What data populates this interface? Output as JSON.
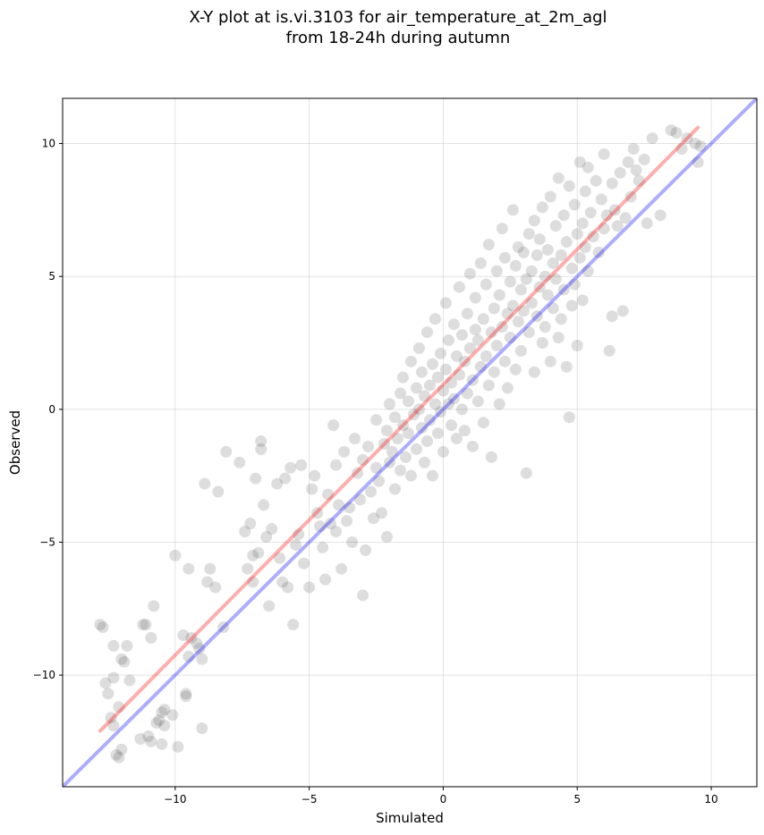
{
  "chart_data": {
    "type": "scatter",
    "title_lines": [
      "X-Y plot at is.vi.3103 for air_temperature_at_2m_agl",
      "from 18-24h during autumn"
    ],
    "xlabel": "Simulated",
    "ylabel": "Observed",
    "xlim": [
      -14.2,
      11.7
    ],
    "ylim": [
      -14.2,
      11.7
    ],
    "xticks": [
      -10,
      -5,
      0,
      5,
      10
    ],
    "yticks": [
      -10,
      -5,
      0,
      5,
      10
    ],
    "xtick_labels": [
      "−10",
      "−5",
      "0",
      "5",
      "10"
    ],
    "ytick_labels": [
      "−10",
      "−5",
      "0",
      "5",
      "10"
    ],
    "grid": true,
    "lines": [
      {
        "color": "#0000ff",
        "x": [
          -14.2,
          11.7
        ],
        "y": [
          -14.2,
          11.7
        ]
      },
      {
        "color": "#ff0000",
        "x": [
          -12.8,
          9.5
        ],
        "y": [
          -12.1,
          10.6
        ]
      }
    ],
    "point_color": "#555555",
    "points": [
      [
        -12.8,
        -8.1
      ],
      [
        -12.7,
        -8.2
      ],
      [
        -12.6,
        -10.3
      ],
      [
        -12.5,
        -10.7
      ],
      [
        -12.4,
        -11.6
      ],
      [
        -12.3,
        -10.1
      ],
      [
        -12.3,
        -11.9
      ],
      [
        -12.3,
        -8.9
      ],
      [
        -12.2,
        -13.0
      ],
      [
        -12.1,
        -11.2
      ],
      [
        -12.1,
        -13.1
      ],
      [
        -12.0,
        -12.8
      ],
      [
        -12.0,
        -9.4
      ],
      [
        -11.9,
        -9.5
      ],
      [
        -11.8,
        -8.9
      ],
      [
        -11.7,
        -10.2
      ],
      [
        -11.3,
        -12.4
      ],
      [
        -11.2,
        -8.1
      ],
      [
        -11.1,
        -8.1
      ],
      [
        -11.0,
        -12.3
      ],
      [
        -10.9,
        -12.5
      ],
      [
        -10.9,
        -8.6
      ],
      [
        -10.8,
        -7.4
      ],
      [
        -10.7,
        -11.8
      ],
      [
        -10.6,
        -11.7
      ],
      [
        -10.5,
        -11.4
      ],
      [
        -10.5,
        -12.6
      ],
      [
        -10.4,
        -11.3
      ],
      [
        -10.4,
        -11.9
      ],
      [
        -10.1,
        -11.5
      ],
      [
        -10.0,
        -5.5
      ],
      [
        -9.9,
        -12.7
      ],
      [
        -9.7,
        -8.5
      ],
      [
        -9.6,
        -10.7
      ],
      [
        -9.6,
        -10.8
      ],
      [
        -9.5,
        -9.3
      ],
      [
        -9.5,
        -6.0
      ],
      [
        -9.4,
        -8.6
      ],
      [
        -9.2,
        -8.8
      ],
      [
        -9.1,
        -9.0
      ],
      [
        -9.0,
        -12.0
      ],
      [
        -9.0,
        -9.4
      ],
      [
        -8.9,
        -2.8
      ],
      [
        -8.8,
        -6.5
      ],
      [
        -8.7,
        -6.0
      ],
      [
        -8.5,
        -6.7
      ],
      [
        -8.4,
        -3.1
      ],
      [
        -8.2,
        -8.2
      ],
      [
        -8.1,
        -1.6
      ],
      [
        -7.6,
        -2.0
      ],
      [
        -7.4,
        -4.6
      ],
      [
        -7.3,
        -6.0
      ],
      [
        -7.2,
        -4.3
      ],
      [
        -7.1,
        -5.5
      ],
      [
        -7.1,
        -6.5
      ],
      [
        -7.0,
        -2.6
      ],
      [
        -6.9,
        -5.4
      ],
      [
        -6.8,
        -1.5
      ],
      [
        -6.8,
        -1.2
      ],
      [
        -6.7,
        -3.6
      ],
      [
        -6.6,
        -4.8
      ],
      [
        -6.5,
        -7.4
      ],
      [
        -6.4,
        -4.5
      ],
      [
        -6.2,
        -2.8
      ],
      [
        -6.1,
        -5.6
      ],
      [
        -6.0,
        -6.5
      ],
      [
        -5.9,
        -2.6
      ],
      [
        -5.8,
        -6.7
      ],
      [
        -5.7,
        -2.2
      ],
      [
        -5.6,
        -8.1
      ],
      [
        -5.5,
        -5.1
      ],
      [
        -5.4,
        -4.7
      ],
      [
        -5.3,
        -2.1
      ],
      [
        -5.2,
        -5.8
      ],
      [
        -5.0,
        -6.7
      ],
      [
        -4.9,
        -3.0
      ],
      [
        -4.8,
        -2.5
      ],
      [
        -4.7,
        -3.9
      ],
      [
        -4.6,
        -4.4
      ],
      [
        -4.5,
        -5.2
      ],
      [
        -4.4,
        -6.4
      ],
      [
        -4.3,
        -3.2
      ],
      [
        -4.2,
        -4.3
      ],
      [
        -4.1,
        -0.6
      ],
      [
        -4.0,
        -2.1
      ],
      [
        -4.0,
        -4.6
      ],
      [
        -3.9,
        -3.6
      ],
      [
        -3.8,
        -6.0
      ],
      [
        -3.7,
        -1.6
      ],
      [
        -3.6,
        -4.2
      ],
      [
        -3.5,
        -3.7
      ],
      [
        -3.4,
        -5.0
      ],
      [
        -3.3,
        -1.1
      ],
      [
        -3.2,
        -2.4
      ],
      [
        -3.1,
        -3.4
      ],
      [
        -3.0,
        -1.9
      ],
      [
        -3.0,
        -7.0
      ],
      [
        -2.9,
        -5.3
      ],
      [
        -2.8,
        -1.4
      ],
      [
        -2.7,
        -3.1
      ],
      [
        -2.6,
        -4.1
      ],
      [
        -2.5,
        -2.2
      ],
      [
        -2.5,
        -0.4
      ],
      [
        -2.4,
        -2.7
      ],
      [
        -2.3,
        -3.9
      ],
      [
        -2.2,
        -1.3
      ],
      [
        -2.1,
        -0.8
      ],
      [
        -2.1,
        -4.8
      ],
      [
        -2.0,
        -2.0
      ],
      [
        -2.0,
        0.2
      ],
      [
        -1.9,
        -1.6
      ],
      [
        -1.8,
        -0.3
      ],
      [
        -1.8,
        -3.0
      ],
      [
        -1.7,
        -1.1
      ],
      [
        -1.6,
        0.6
      ],
      [
        -1.6,
        -2.3
      ],
      [
        -1.5,
        -0.6
      ],
      [
        -1.5,
        1.2
      ],
      [
        -1.4,
        -1.8
      ],
      [
        -1.3,
        0.3
      ],
      [
        -1.3,
        -0.9
      ],
      [
        -1.2,
        1.8
      ],
      [
        -1.2,
        -2.5
      ],
      [
        -1.1,
        -0.2
      ],
      [
        -1.0,
        0.8
      ],
      [
        -1.0,
        -1.5
      ],
      [
        -0.9,
        2.3
      ],
      [
        -0.9,
        0.0
      ],
      [
        -0.8,
        -0.7
      ],
      [
        -0.8,
        1.4
      ],
      [
        -0.7,
        -2.0
      ],
      [
        -0.7,
        0.5
      ],
      [
        -0.6,
        -1.2
      ],
      [
        -0.6,
        2.9
      ],
      [
        -0.5,
        0.9
      ],
      [
        -0.5,
        -0.4
      ],
      [
        -0.4,
        1.7
      ],
      [
        -0.4,
        -2.5
      ],
      [
        -0.3,
        0.2
      ],
      [
        -0.3,
        3.4
      ],
      [
        -0.2,
        -0.9
      ],
      [
        -0.2,
        1.2
      ],
      [
        -0.1,
        2.1
      ],
      [
        -0.1,
        -0.1
      ],
      [
        0.0,
        0.7
      ],
      [
        0.0,
        -1.6
      ],
      [
        0.1,
        1.5
      ],
      [
        0.1,
        4.0
      ],
      [
        0.2,
        0.2
      ],
      [
        0.2,
        2.6
      ],
      [
        0.3,
        -0.6
      ],
      [
        0.3,
        1.0
      ],
      [
        0.4,
        3.2
      ],
      [
        0.4,
        0.4
      ],
      [
        0.5,
        -1.1
      ],
      [
        0.5,
        2.0
      ],
      [
        0.6,
        4.6
      ],
      [
        0.6,
        1.3
      ],
      [
        0.7,
        0.0
      ],
      [
        0.7,
        2.8
      ],
      [
        0.8,
        -0.8
      ],
      [
        0.8,
        1.8
      ],
      [
        0.9,
        3.6
      ],
      [
        0.9,
        0.6
      ],
      [
        1.0,
        5.1
      ],
      [
        1.0,
        2.3
      ],
      [
        1.1,
        -1.4
      ],
      [
        1.1,
        1.1
      ],
      [
        1.2,
        3.0
      ],
      [
        1.2,
        4.2
      ],
      [
        1.3,
        0.3
      ],
      [
        1.3,
        2.6
      ],
      [
        1.4,
        5.5
      ],
      [
        1.4,
        1.6
      ],
      [
        1.5,
        -0.5
      ],
      [
        1.5,
        3.4
      ],
      [
        1.6,
        2.0
      ],
      [
        1.6,
        4.7
      ],
      [
        1.7,
        0.9
      ],
      [
        1.7,
        6.2
      ],
      [
        1.8,
        2.9
      ],
      [
        1.8,
        -1.8
      ],
      [
        1.9,
        3.8
      ],
      [
        1.9,
        1.4
      ],
      [
        2.0,
        5.2
      ],
      [
        2.0,
        2.4
      ],
      [
        2.1,
        0.2
      ],
      [
        2.1,
        4.3
      ],
      [
        2.2,
        3.1
      ],
      [
        2.2,
        6.8
      ],
      [
        2.3,
        1.8
      ],
      [
        2.3,
        5.7
      ],
      [
        2.4,
        3.6
      ],
      [
        2.4,
        0.8
      ],
      [
        2.5,
        4.8
      ],
      [
        2.5,
        2.7
      ],
      [
        2.6,
        7.5
      ],
      [
        2.6,
        3.9
      ],
      [
        2.7,
        1.5
      ],
      [
        2.7,
        5.4
      ],
      [
        2.8,
        3.3
      ],
      [
        2.8,
        6.1
      ],
      [
        2.9,
        4.5
      ],
      [
        2.9,
        2.2
      ],
      [
        3.0,
        5.9
      ],
      [
        3.0,
        3.7
      ],
      [
        3.1,
        -2.4
      ],
      [
        3.1,
        4.9
      ],
      [
        3.2,
        6.6
      ],
      [
        3.2,
        2.9
      ],
      [
        3.3,
        5.2
      ],
      [
        3.3,
        4.0
      ],
      [
        3.4,
        7.1
      ],
      [
        3.4,
        1.4
      ],
      [
        3.5,
        5.8
      ],
      [
        3.5,
        3.5
      ],
      [
        3.6,
        6.4
      ],
      [
        3.6,
        4.6
      ],
      [
        3.7,
        2.5
      ],
      [
        3.7,
        7.6
      ],
      [
        3.8,
        5.0
      ],
      [
        3.8,
        3.1
      ],
      [
        3.9,
        6.0
      ],
      [
        3.9,
        4.3
      ],
      [
        4.0,
        8.0
      ],
      [
        4.0,
        1.8
      ],
      [
        4.1,
        5.5
      ],
      [
        4.1,
        3.8
      ],
      [
        4.2,
        6.9
      ],
      [
        4.2,
        4.9
      ],
      [
        4.3,
        2.7
      ],
      [
        4.3,
        8.7
      ],
      [
        4.4,
        5.8
      ],
      [
        4.4,
        3.4
      ],
      [
        4.5,
        7.3
      ],
      [
        4.5,
        4.5
      ],
      [
        4.6,
        6.3
      ],
      [
        4.6,
        1.6
      ],
      [
        4.7,
        8.4
      ],
      [
        4.7,
        -0.3
      ],
      [
        4.8,
        5.3
      ],
      [
        4.8,
        3.9
      ],
      [
        4.9,
        7.7
      ],
      [
        4.9,
        4.7
      ],
      [
        5.0,
        6.6
      ],
      [
        5.0,
        2.4
      ],
      [
        5.1,
        9.3
      ],
      [
        5.1,
        5.7
      ],
      [
        5.2,
        7.0
      ],
      [
        5.2,
        4.1
      ],
      [
        5.3,
        8.2
      ],
      [
        5.3,
        6.1
      ],
      [
        5.4,
        9.1
      ],
      [
        5.4,
        5.2
      ],
      [
        5.5,
        7.4
      ],
      [
        5.6,
        6.5
      ],
      [
        5.7,
        8.6
      ],
      [
        5.8,
        5.9
      ],
      [
        5.9,
        7.9
      ],
      [
        6.0,
        9.6
      ],
      [
        6.0,
        6.8
      ],
      [
        6.1,
        7.3
      ],
      [
        6.2,
        2.2
      ],
      [
        6.3,
        8.5
      ],
      [
        6.3,
        3.5
      ],
      [
        6.4,
        7.5
      ],
      [
        6.5,
        6.9
      ],
      [
        6.6,
        8.9
      ],
      [
        6.7,
        3.7
      ],
      [
        6.8,
        7.2
      ],
      [
        6.9,
        9.3
      ],
      [
        7.0,
        8.0
      ],
      [
        7.1,
        9.8
      ],
      [
        7.2,
        9.0
      ],
      [
        7.3,
        8.6
      ],
      [
        7.5,
        9.4
      ],
      [
        7.6,
        7.0
      ],
      [
        7.8,
        10.2
      ],
      [
        8.1,
        7.3
      ],
      [
        8.5,
        10.5
      ],
      [
        8.7,
        10.4
      ],
      [
        8.9,
        9.8
      ],
      [
        9.1,
        10.2
      ],
      [
        9.4,
        10.0
      ],
      [
        9.5,
        9.3
      ],
      [
        9.6,
        9.9
      ]
    ]
  }
}
